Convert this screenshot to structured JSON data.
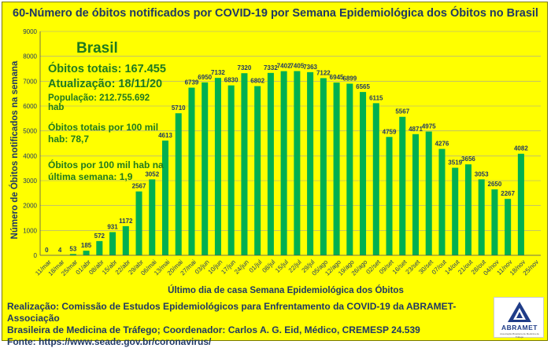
{
  "title": "60-Número de óbitos notificados por COVID-19 por Semana Epidemiológica dos Óbitos  no Brasil",
  "info": {
    "country": "Brasil",
    "total": "Óbitos totais: 167.455",
    "update": "Atualização: 18/11/20",
    "population": "População: 212.755.692 hab",
    "rate_label": "Óbitos totais por 100 mil hab: 78,7",
    "week_label": "Óbitos por 100 mil hab na última semana: 1,9"
  },
  "footer": {
    "line1": "Realização: Comissão de Estudos Epidemiológicos para Enfrentamento da COVID-19 da ABRAMET-Associação",
    "line2": "Brasileira de Medicina de Tráfego; Coordenador: Carlos A. G. Eid, Médico, CREMESP 24.539",
    "line3": "Fonte: https://www.seade.gov.br/coronavirus/"
  },
  "logo": {
    "name": "ABRAMET",
    "subtitle": "Associação Brasileira de Medicina de Tráfego"
  },
  "colors": {
    "background": "#ffff00",
    "bar": "#00b050",
    "title": "#1f3864",
    "info": "#1f7a1f",
    "grid": "#a0a0a0"
  },
  "chart_data": {
    "type": "bar",
    "xlabel": "Último dia de casa Semana Epidemiológica dos Óbitos",
    "ylabel": "Número de Óbitos notificados na semana",
    "ylim": [
      0,
      9000
    ],
    "yticks": [
      0,
      1000,
      2000,
      3000,
      4000,
      5000,
      6000,
      7000,
      8000,
      9000
    ],
    "grid": true,
    "categories": [
      "11/mar",
      "18/mar",
      "25/mar",
      "01/abr",
      "08/abr",
      "15/abr",
      "22/abr",
      "29/abr",
      "06/mai",
      "13/mai",
      "20/mai",
      "27/mai",
      "03/jun",
      "10/jun",
      "17/jun",
      "24/jun",
      "01/jul",
      "08/jul",
      "15/jul",
      "22/jul",
      "29/jul",
      "05/ago",
      "12/ago",
      "19/ago",
      "26/ago",
      "02/set",
      "09/set",
      "16/set",
      "23/set",
      "30/set",
      "07/out",
      "14/out",
      "21/out",
      "28/out",
      "04/nov",
      "11/nov",
      "18/nov",
      "25/nov"
    ],
    "values": [
      0,
      4,
      53,
      185,
      572,
      931,
      1172,
      2567,
      3052,
      4613,
      5710,
      6739,
      6950,
      7132,
      6830,
      7320,
      6802,
      7332,
      7402,
      7405,
      7363,
      7122,
      6945,
      6899,
      6565,
      6115,
      4759,
      5567,
      4871,
      4975,
      4276,
      3519,
      3656,
      3053,
      2650,
      2267,
      4082,
      null
    ],
    "data_labels": [
      "0",
      "4",
      "53",
      "185",
      "572",
      "931",
      "1172",
      "2567",
      "3052",
      "4613",
      "5710",
      "6739",
      "6950",
      "7132",
      "6830",
      "7320",
      "6802",
      "7332",
      "7402",
      "7405",
      "7363",
      "7122",
      "6945",
      "6899",
      "6565",
      "6115",
      "4759",
      "5567",
      "4871",
      "4975",
      "4276",
      "3519",
      "3656",
      "3053",
      "2650",
      "2267",
      "4082",
      ""
    ]
  }
}
